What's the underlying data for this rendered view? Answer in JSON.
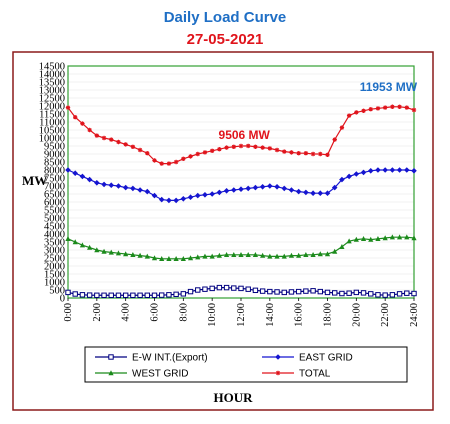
{
  "title": "Daily Load Curve",
  "subtitle": "27-05-2021",
  "colors": {
    "title": "#1f6fc5",
    "subtitle": "#e0141c",
    "frame": "#8b1a1a",
    "plot_border": "#33a033",
    "grid": "#e6e6e6",
    "ew_int": "#000080",
    "east": "#1515d0",
    "west": "#1b8a1b",
    "total": "#e0141c",
    "anno_total": "#e0141c",
    "anno_peak": "#1f6fc5"
  },
  "chart_data": {
    "type": "line",
    "xlabel": "HOUR",
    "ylabel": "MW",
    "ylim": [
      0,
      14500
    ],
    "y_ticks": [
      "0",
      "500",
      "1000",
      "1500",
      "2000",
      "2500",
      "3000",
      "3500",
      "4000",
      "4500",
      "5000",
      "5500",
      "6000",
      "6500",
      "7000",
      "7500",
      "8000",
      "8500",
      "9000",
      "9500",
      "10000",
      "10500",
      "11000",
      "11500",
      "12000",
      "12500",
      "13000",
      "13500",
      "14000",
      "14500"
    ],
    "x_ticks": [
      "0:00",
      "2:00",
      "4:00",
      "6:00",
      "8:00",
      "10:00",
      "12:00",
      "14:00",
      "16:00",
      "18:00",
      "20:00",
      "22:00",
      "24:00"
    ],
    "x_hours": [
      0,
      0.5,
      1,
      1.5,
      2,
      2.5,
      3,
      3.5,
      4,
      4.5,
      5,
      5.5,
      6,
      6.5,
      7,
      7.5,
      8,
      8.5,
      9,
      9.5,
      10,
      10.5,
      11,
      11.5,
      12,
      12.5,
      13,
      13.5,
      14,
      14.5,
      15,
      15.5,
      16,
      16.5,
      17,
      17.5,
      18,
      18.5,
      19,
      19.5,
      20,
      20.5,
      21,
      21.5,
      22,
      22.5,
      23,
      23.5,
      24
    ],
    "series": [
      {
        "name": "E-W INT.(Export)",
        "color_key": "ew_int",
        "marker": "square-open",
        "values": [
          350,
          250,
          200,
          180,
          170,
          170,
          170,
          170,
          170,
          170,
          170,
          170,
          170,
          180,
          200,
          230,
          260,
          400,
          500,
          550,
          600,
          650,
          650,
          620,
          600,
          550,
          480,
          430,
          400,
          380,
          350,
          380,
          400,
          430,
          450,
          400,
          350,
          320,
          280,
          300,
          350,
          320,
          260,
          200,
          180,
          200,
          260,
          300,
          280
        ]
      },
      {
        "name": "EAST GRID",
        "color_key": "east",
        "marker": "diamond",
        "values": [
          8000,
          7800,
          7600,
          7400,
          7200,
          7100,
          7050,
          7000,
          6900,
          6850,
          6750,
          6650,
          6400,
          6150,
          6100,
          6100,
          6200,
          6300,
          6400,
          6450,
          6500,
          6600,
          6700,
          6750,
          6800,
          6850,
          6900,
          6950,
          7000,
          6950,
          6850,
          6750,
          6650,
          6600,
          6550,
          6550,
          6550,
          6900,
          7400,
          7600,
          7750,
          7850,
          7950,
          8000,
          8000,
          8000,
          8000,
          8000,
          7950
        ]
      },
      {
        "name": "WEST GRID",
        "color_key": "west",
        "marker": "triangle",
        "values": [
          3700,
          3500,
          3300,
          3150,
          3000,
          2900,
          2850,
          2800,
          2750,
          2700,
          2650,
          2600,
          2500,
          2450,
          2450,
          2450,
          2450,
          2500,
          2550,
          2600,
          2600,
          2650,
          2700,
          2700,
          2700,
          2700,
          2700,
          2650,
          2600,
          2600,
          2600,
          2650,
          2650,
          2700,
          2700,
          2750,
          2750,
          2900,
          3200,
          3550,
          3650,
          3700,
          3650,
          3700,
          3750,
          3800,
          3800,
          3800,
          3750
        ]
      },
      {
        "name": "TOTAL",
        "color_key": "total",
        "marker": "star",
        "values": [
          11900,
          11300,
          10900,
          10500,
          10150,
          10000,
          9900,
          9750,
          9600,
          9450,
          9250,
          9050,
          8600,
          8400,
          8400,
          8500,
          8700,
          8850,
          9000,
          9100,
          9200,
          9300,
          9400,
          9450,
          9500,
          9506,
          9450,
          9400,
          9350,
          9250,
          9150,
          9100,
          9050,
          9050,
          9000,
          9000,
          8950,
          9900,
          10650,
          11400,
          11600,
          11700,
          11800,
          11850,
          11900,
          11953,
          11950,
          11900,
          11750
        ]
      }
    ],
    "annotations": [
      {
        "text": "9506 MW",
        "color_key": "anno_total",
        "hour": 12.5,
        "value": 9506
      },
      {
        "text": "11953 MW",
        "color_key": "anno_peak",
        "hour": 22.5,
        "value": 11953
      }
    ],
    "legend_position": "bottom",
    "grid": true
  }
}
